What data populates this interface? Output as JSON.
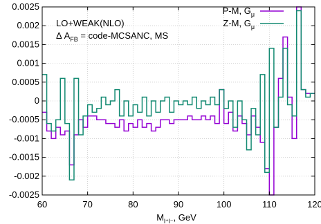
{
  "chart_data": {
    "type": "line",
    "step": true,
    "xlim": [
      60,
      120
    ],
    "ylim": [
      -0.0025,
      0.0025
    ],
    "xticks": [
      60,
      70,
      80,
      90,
      100,
      110,
      120
    ],
    "xtick_labels": [
      "60",
      "70",
      "80",
      "90",
      "100",
      "110",
      "120"
    ],
    "yticks": [
      -0.0025,
      -0.002,
      -0.0015,
      -0.001,
      -0.0005,
      0,
      0.0005,
      0.001,
      0.0015,
      0.002,
      0.0025
    ],
    "ytick_labels": [
      "-0.0025",
      "-0.002",
      "-0.0015",
      "-0.001",
      "-0.0005",
      "0",
      "0.0005",
      "0.001",
      "0.0015",
      "0.002",
      "0.0025"
    ],
    "grid": true,
    "xlabel": {
      "main": "M",
      "sub": "l⁺l⁻",
      "rest": ", GeV"
    },
    "annotation": {
      "line1": "LO+WEAK(NLO)",
      "line2_prefix": "Δ A",
      "line2_sub": "FB",
      "line2_rest": " = code-MCSANC, MS"
    },
    "legend_position": "top-right",
    "x_edges": [
      60,
      61,
      62,
      63,
      64,
      65,
      66,
      67,
      68,
      69,
      70,
      71,
      72,
      73,
      74,
      75,
      76,
      77,
      78,
      79,
      80,
      81,
      82,
      83,
      84,
      85,
      86,
      87,
      88,
      89,
      90,
      91,
      92,
      93,
      94,
      95,
      96,
      97,
      98,
      99,
      100,
      101,
      102,
      103,
      104,
      105,
      106,
      107,
      108,
      109,
      110,
      111,
      112,
      113,
      114,
      115,
      116,
      117,
      118,
      119,
      120
    ],
    "series": [
      {
        "name_main": "P-M, G",
        "name_sub": "μ",
        "color": "#9400d3",
        "values": [
          -0.0003,
          -0.0008,
          -0.001,
          -0.0007,
          -0.0009,
          -0.0008,
          -0.0017,
          -0.0009,
          -0.0005,
          -0.0007,
          -0.0004,
          -0.0004,
          -0.0005,
          -0.0005,
          -0.0006,
          -0.0006,
          -0.0007,
          -0.0005,
          -0.0008,
          -0.0006,
          -0.0007,
          -0.0005,
          -0.0007,
          -0.0006,
          -0.0008,
          -0.0007,
          -0.0005,
          -0.0005,
          -0.0006,
          -0.0005,
          -0.0005,
          -0.0005,
          -0.0004,
          -0.0005,
          -0.0005,
          -0.0004,
          -0.0005,
          -0.0004,
          -0.0006,
          0.0003,
          -0.0006,
          -0.0003,
          -0.0008,
          -0.0004,
          -0.0006,
          -0.0009,
          -0.0004,
          -0.0007,
          -0.0011,
          -0.0018,
          -0.0025,
          -0.0007,
          0.0006,
          0.0017,
          0.0001,
          -0.001,
          0.0025,
          0.0003,
          0.0002,
          0.0002
        ]
      },
      {
        "name_main": "Z-M, G",
        "name_sub": "μ",
        "color": "#138a72",
        "values": [
          0.0007,
          -0.0006,
          -0.0008,
          -0.0005,
          0.0006,
          -0.0006,
          -0.0021,
          0.0006,
          -0.0009,
          -0.0004,
          -0.0001,
          -0.0003,
          -0.0002,
          0.0001,
          -0.0001,
          0,
          0.0003,
          -0.0004,
          0,
          -0.0004,
          -0.0001,
          -0.0003,
          0.0001,
          -0.0004,
          0,
          -0.0003,
          0,
          0.0001,
          -0.0003,
          0,
          -0.0001,
          0,
          -0.0001,
          0.0001,
          -0.0002,
          0,
          -0.0001,
          0.0001,
          -0.0001,
          0.0003,
          -0.0002,
          0,
          -0.0007,
          0,
          -0.0005,
          -0.0013,
          -0.0002,
          -0.0009,
          0.0007,
          -0.0019,
          0.0014,
          -0.0007,
          0.0001,
          0.0014,
          -0.0001,
          -0.0004,
          0.0024,
          0.0003,
          0.0001,
          0.0002
        ]
      }
    ]
  }
}
